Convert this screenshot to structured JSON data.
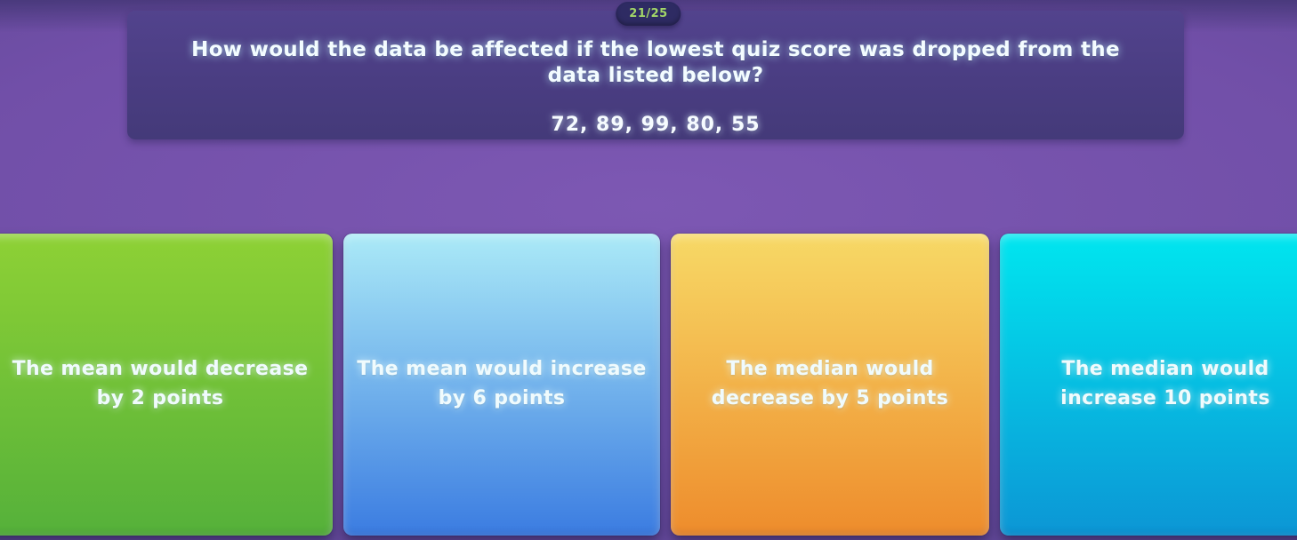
{
  "quiz": {
    "progress_badge": "21/25",
    "question": "How would the data be affected if the lowest quiz score was dropped from the data listed below?",
    "data_values": "72, 89, 99, 80, 55"
  },
  "answers": [
    {
      "lines": [
        "The mean would decrease",
        "by 2 points"
      ],
      "color_top": "#8ed135",
      "color_bottom": "#55b13a"
    },
    {
      "lines": [
        "The mean would increase",
        "by 6 points"
      ],
      "color_top": "#abeaf7",
      "color_bottom": "#3b7ce1"
    },
    {
      "lines": [
        "The median would",
        "decrease by 5 points"
      ],
      "color_top": "#f7d966",
      "color_bottom": "#ee8c2c"
    },
    {
      "lines": [
        "The median would",
        "increase 10 points"
      ],
      "color_top": "#00e6ef",
      "color_bottom": "#0c96d5"
    }
  ],
  "colors": {
    "background_purple": "#714fa8",
    "question_panel": "#4a3d82",
    "badge_bg": "#2e2b63",
    "badge_text": "#a3d768",
    "question_text": "#f3fcff"
  }
}
